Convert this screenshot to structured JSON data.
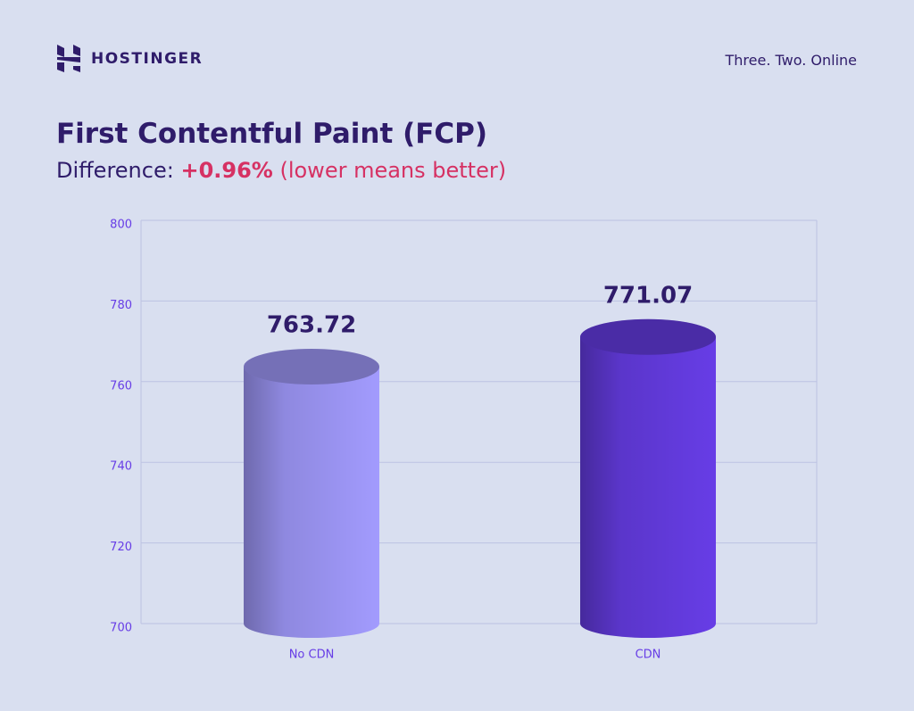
{
  "brand": "HOSTINGER",
  "tagline": "Three. Two. Online",
  "chart_data": {
    "type": "bar",
    "title": "First Contentful Paint (FCP)",
    "subtitle": {
      "label": "Difference:",
      "difference": "+0.96%",
      "note": "(lower means better)"
    },
    "categories": [
      "No CDN",
      "CDN"
    ],
    "values": [
      763.72,
      771.07
    ],
    "colors": [
      "#a29bfe",
      "#673de6"
    ],
    "ylim": [
      700,
      800
    ],
    "yticks": [
      700,
      720,
      740,
      760,
      780,
      800
    ],
    "grid": true
  }
}
